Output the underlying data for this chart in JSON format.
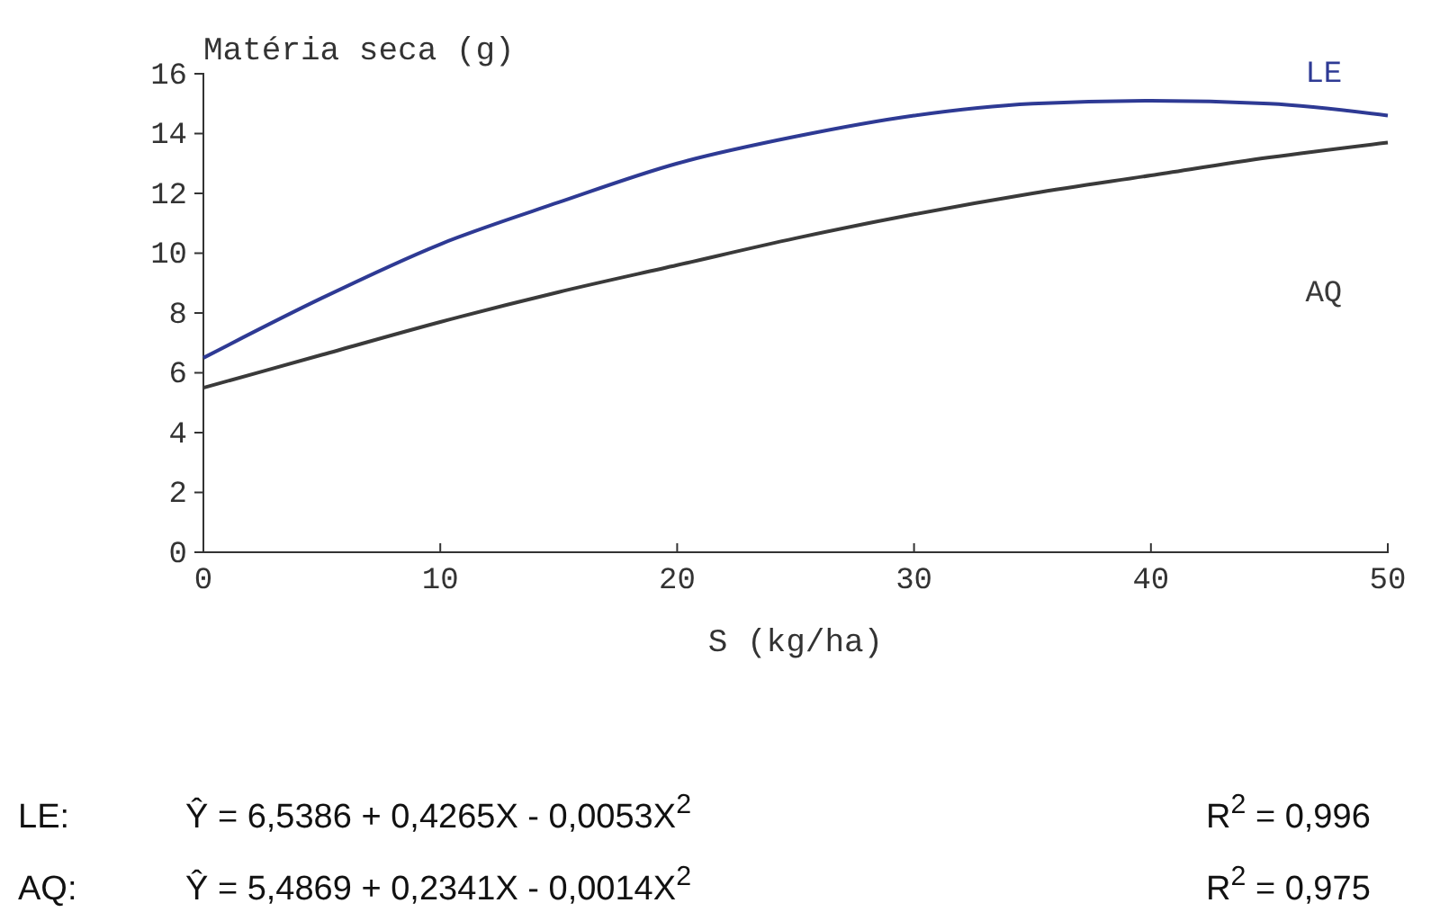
{
  "chart_data": {
    "type": "line",
    "xlabel": "S (kg/ha)",
    "ylabel": "Matéria seca (g)",
    "x": [
      0,
      5,
      10,
      15,
      20,
      25,
      30,
      35,
      40,
      45,
      50
    ],
    "xlim": [
      0,
      50
    ],
    "xticks": [
      0,
      10,
      20,
      30,
      40,
      50
    ],
    "ylim": [
      0,
      16
    ],
    "yticks": [
      0,
      2,
      4,
      6,
      8,
      10,
      12,
      14,
      16
    ],
    "grid": false,
    "legend": false,
    "marker": "none",
    "line_style": "solid",
    "series": [
      {
        "name": "LE",
        "color": "#2e3a94",
        "values": [
          6.5,
          8.5,
          10.3,
          11.7,
          13.0,
          13.9,
          14.6,
          15.0,
          15.1,
          15.0,
          14.6
        ]
      },
      {
        "name": "AQ",
        "color": "#3a3a3a",
        "values": [
          5.5,
          6.6,
          7.7,
          8.7,
          9.6,
          10.5,
          11.3,
          12.0,
          12.6,
          13.2,
          13.7
        ]
      }
    ],
    "annotations": [
      "LE:",
      "Ŷ = 6,5386 + 0,4265X - 0,0053X$^{2}$",
      "R$^{2}$ = 0,996",
      "AQ:",
      "Ŷ = 5,4869 + 0,2341X - 0,0014X$^{2}$",
      "R$^{2}$ = 0,975"
    ]
  }
}
